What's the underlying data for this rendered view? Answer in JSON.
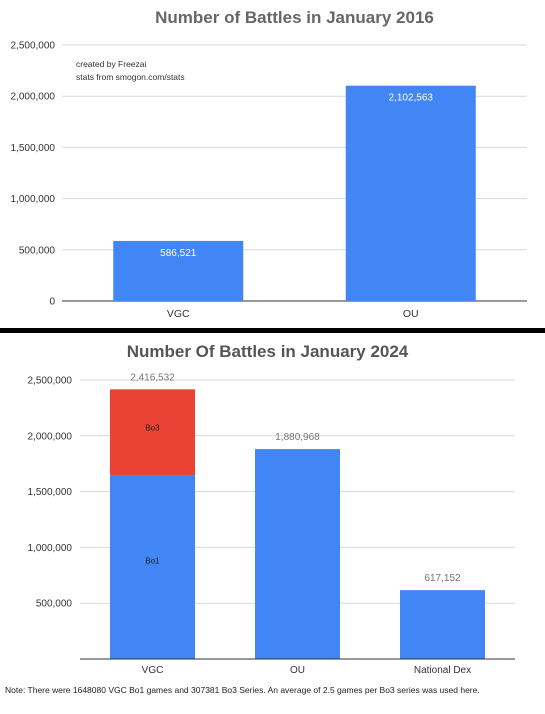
{
  "chart_data": [
    {
      "type": "bar",
      "title": "Number of Battles in January 2016",
      "categories": [
        "VGC",
        "OU"
      ],
      "values": [
        586521,
        2102563
      ],
      "value_labels": [
        "586,521",
        "2,102,563"
      ],
      "y_ticks": [
        0,
        500000,
        1000000,
        1500000,
        2000000,
        2500000
      ],
      "y_tick_labels": [
        "0",
        "500,000",
        "1,000,000",
        "1,500,000",
        "2,000,000",
        "2,500,000"
      ],
      "ylim": [
        0,
        2500000
      ],
      "annotation": [
        "created by Freezai",
        "stats from smogon.com/stats"
      ],
      "grid": true,
      "colors": {
        "bar": "#4285f4",
        "title": "#666666"
      }
    },
    {
      "type": "bar",
      "stacked": true,
      "title": "Number Of Battles in January 2024",
      "categories": [
        "VGC",
        "OU",
        "National Dex"
      ],
      "series": [
        {
          "name": "Bo1",
          "values": [
            1648080,
            1880968,
            617152
          ]
        },
        {
          "name": "Bo3",
          "values": [
            768452,
            0,
            0
          ]
        }
      ],
      "segment_labels": [
        {
          "series": "Bo1",
          "category": "VGC"
        },
        {
          "series": "Bo3",
          "category": "VGC"
        }
      ],
      "totals": [
        2416532,
        1880968,
        617152
      ],
      "total_labels": [
        "2,416,532",
        "1,880,968",
        "617,152"
      ],
      "y_ticks": [
        500000,
        1000000,
        1500000,
        2000000,
        2500000
      ],
      "y_tick_labels": [
        "500,000",
        "1,000,000",
        "1,500,000",
        "2,000,000",
        "2,500,000"
      ],
      "ylim": [
        0,
        2500000
      ],
      "grid": true,
      "colors": {
        "Bo1": "#4285f4",
        "Bo3": "#ea4335",
        "title": "#555555"
      }
    }
  ],
  "note": "Note: There were 1648080 VGC Bo1 games and 307381 Bo3 Series. An average of 2.5 games per Bo3 series was used here."
}
